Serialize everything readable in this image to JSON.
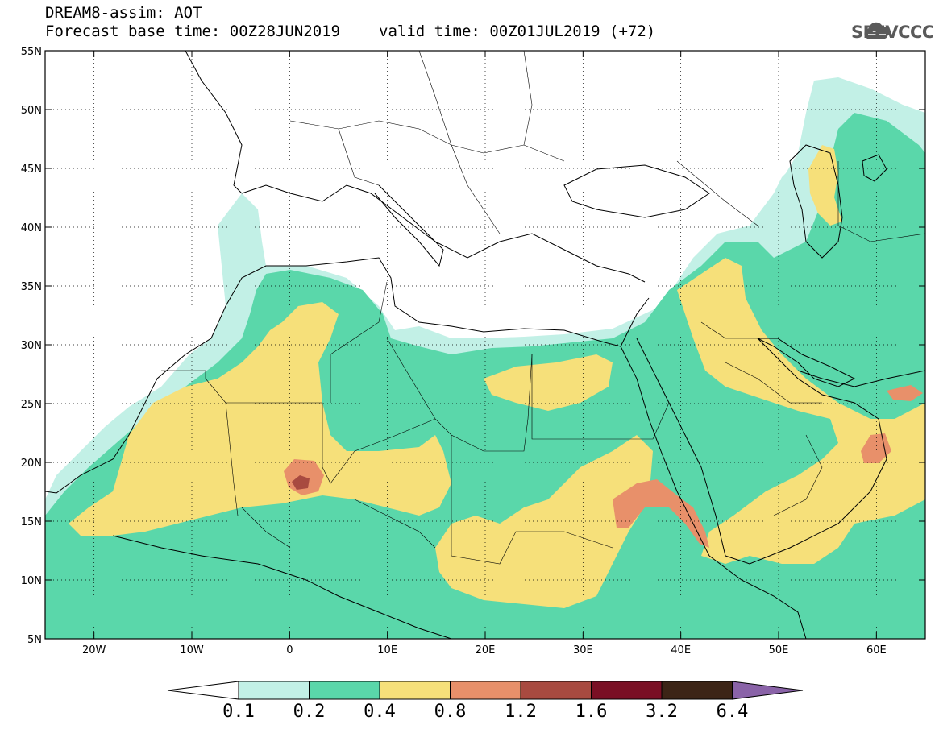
{
  "header": {
    "title": "DREAM8-assim: AOT",
    "base_time": "Forecast base time: 00Z28JUN2019",
    "valid_time": "valid time: 00Z01JUL2019 (+72)"
  },
  "logo": {
    "text": "SEEVCCC",
    "icon": "cloud-icon",
    "color": "#5a5a5a"
  },
  "map": {
    "lon_range": [
      -25,
      65
    ],
    "lat_range": [
      5,
      55
    ],
    "lon_ticks": [
      {
        "value": -20,
        "label": "20W"
      },
      {
        "value": -10,
        "label": "10W"
      },
      {
        "value": 0,
        "label": "0"
      },
      {
        "value": 10,
        "label": "10E"
      },
      {
        "value": 20,
        "label": "20E"
      },
      {
        "value": 30,
        "label": "30E"
      },
      {
        "value": 40,
        "label": "40E"
      },
      {
        "value": 50,
        "label": "50E"
      },
      {
        "value": 60,
        "label": "60E"
      }
    ],
    "lat_ticks": [
      {
        "value": 55,
        "label": "55N"
      },
      {
        "value": 50,
        "label": "50N"
      },
      {
        "value": 45,
        "label": "45N"
      },
      {
        "value": 40,
        "label": "40N"
      },
      {
        "value": 35,
        "label": "35N"
      },
      {
        "value": 30,
        "label": "30N"
      },
      {
        "value": 25,
        "label": "25N"
      },
      {
        "value": 20,
        "label": "20N"
      },
      {
        "value": 15,
        "label": "15N"
      },
      {
        "value": 10,
        "label": "10N"
      },
      {
        "value": 5,
        "label": "5N"
      }
    ],
    "grid": true
  },
  "colorbar": {
    "levels": [
      "0.1",
      "0.2",
      "0.4",
      "0.8",
      "1.2",
      "1.6",
      "3.2",
      "6.4"
    ],
    "colors": [
      "#ffffff",
      "#c2f0e6",
      "#5ad7aa",
      "#f6e07a",
      "#e8906a",
      "#a84a40",
      "#7a0f24",
      "#3c2416",
      "#8a63a8"
    ]
  }
}
